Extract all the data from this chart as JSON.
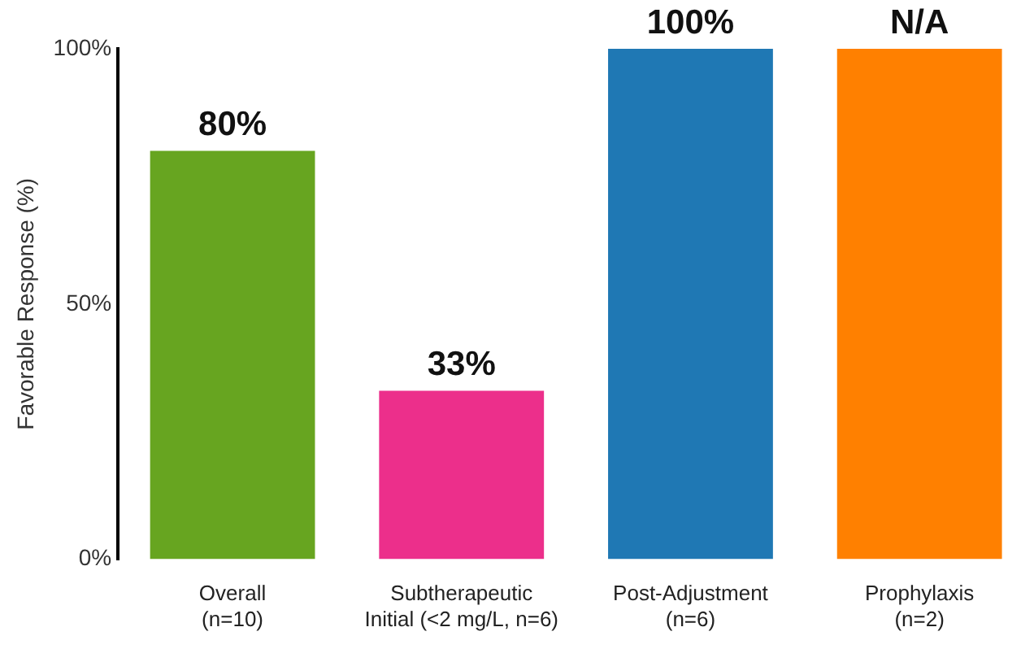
{
  "chart_data": {
    "type": "bar",
    "ylabel": "Favorable Response (%)",
    "categories": [
      "Overall\n(n=10)",
      "Subtherapeutic\nInitial (<2 mg/L, n=6)",
      "Post-Adjustment\n(n=6)",
      "Prophylaxis\n(n=2)"
    ],
    "values": [
      80,
      33,
      100,
      100
    ],
    "colors": [
      "#67a520",
      "#ec2f8b",
      "#1f78b4",
      "#ff8000"
    ],
    "value_labels": [
      "80%",
      "33%",
      "100%",
      "N/A"
    ],
    "ylim": [
      0,
      100
    ],
    "yticks": [
      {
        "value": 0,
        "label": "0%"
      },
      {
        "value": 50,
        "label": "50%"
      },
      {
        "value": 100,
        "label": "100%"
      }
    ],
    "grid": false,
    "legend": false
  }
}
